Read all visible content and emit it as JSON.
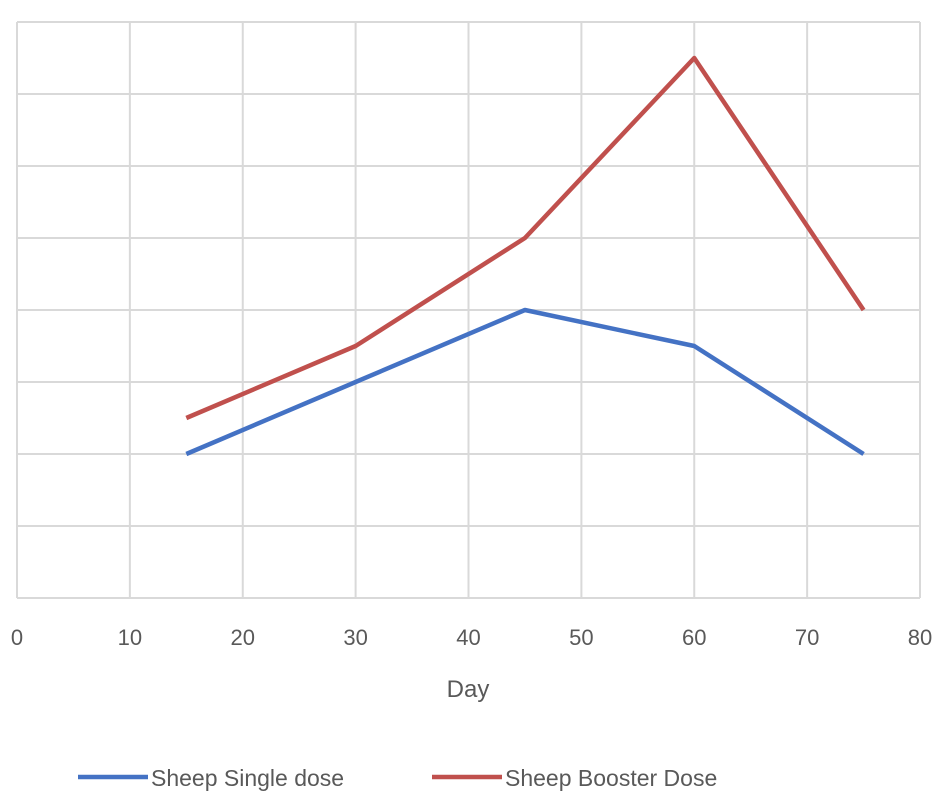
{
  "chart_data": {
    "type": "line",
    "title": "",
    "xlabel": "Day",
    "ylabel": "",
    "xlim": [
      0,
      80
    ],
    "ylim": [
      0,
      8
    ],
    "x_ticks": [
      "0",
      "10",
      "20",
      "30",
      "40",
      "50",
      "60",
      "70",
      "80"
    ],
    "x_tick_values": [
      0,
      10,
      20,
      30,
      40,
      50,
      60,
      70,
      80
    ],
    "y_gridlines": [
      0,
      1,
      2,
      3,
      4,
      5,
      6,
      7,
      8
    ],
    "grid": true,
    "legend_position": "bottom",
    "x": [
      15,
      30,
      45,
      60,
      75
    ],
    "series": [
      {
        "name": "Sheep Single dose",
        "color": "#4472C4",
        "values": [
          2,
          3,
          4,
          3.5,
          2
        ]
      },
      {
        "name": "Sheep Booster Dose",
        "color": "#C0504D",
        "values": [
          2.5,
          3.5,
          5,
          7.5,
          4
        ]
      }
    ]
  }
}
